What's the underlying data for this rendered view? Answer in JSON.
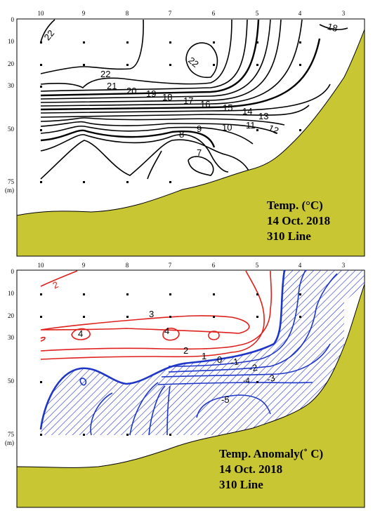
{
  "colors": {
    "land": "#C9C634",
    "positive": "#E0201C",
    "negative": "#1E36C8",
    "hatch": "#2030D0",
    "temp_line": "#000000"
  },
  "panels": [
    {
      "id": "temperature",
      "title_lines": [
        "Temp. (°C)",
        "14 Oct. 2018",
        "310 Line"
      ],
      "station_labels": [
        "10",
        "9",
        "8",
        "7",
        "6",
        "5",
        "4",
        "3"
      ],
      "depth_labels": [
        "0",
        "10",
        "20",
        "30",
        "50",
        "75"
      ],
      "depth_unit": "(m)",
      "contour_levels": [
        "22",
        "21",
        "20",
        "19",
        "18",
        "17",
        "16",
        "15",
        "14",
        "13",
        "12",
        "11",
        "10",
        "9",
        "8",
        "7",
        "22",
        "18",
        "22"
      ]
    },
    {
      "id": "anomaly",
      "title_lines": [
        "Temp. Anomaly(˚ C)",
        "14 Oct. 2018",
        "310 Line"
      ],
      "station_labels": [
        "10",
        "9",
        "8",
        "7",
        "6",
        "5",
        "4",
        "3"
      ],
      "depth_labels": [
        "0",
        "10",
        "20",
        "30",
        "50",
        "75"
      ],
      "depth_unit": "(m)",
      "contour_levels": [
        "2",
        "3",
        "4",
        "4",
        "2",
        "1",
        "0",
        "-1",
        "-2",
        "-3",
        "-4",
        "-5"
      ]
    }
  ]
}
